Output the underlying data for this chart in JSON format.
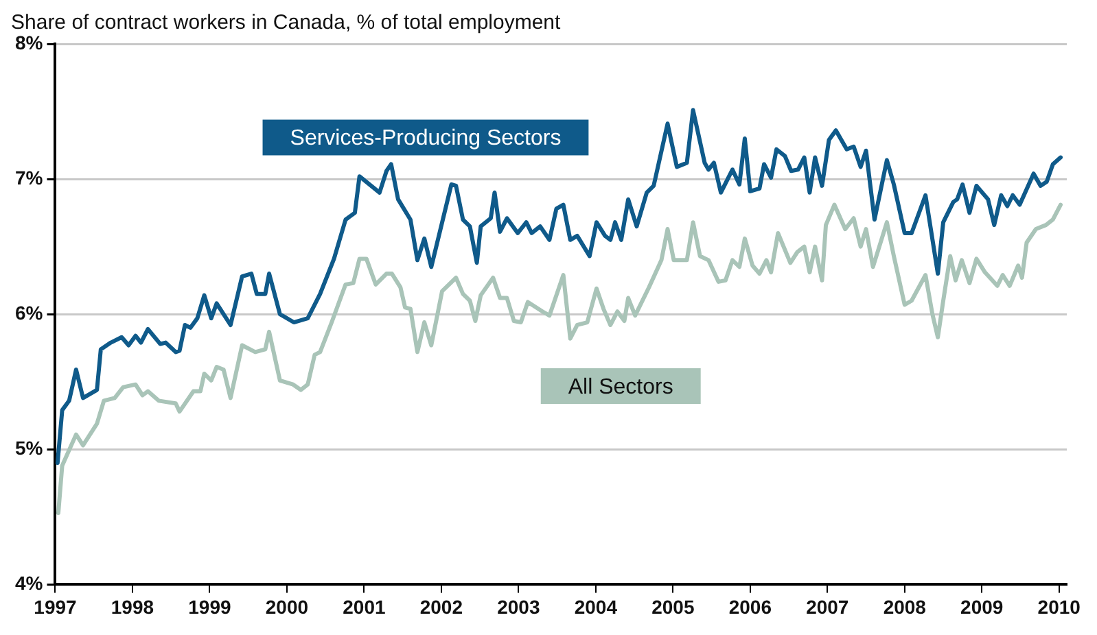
{
  "chart_data": {
    "type": "line",
    "title": "Share of contract workers in Canada, % of total employment",
    "xlim": [
      1997,
      2010.1
    ],
    "xticks": [
      1997,
      1998,
      1999,
      2000,
      2001,
      2002,
      2003,
      2004,
      2005,
      2006,
      2007,
      2008,
      2009,
      2010
    ],
    "ylim": [
      4,
      8
    ],
    "yticks": [
      {
        "value": 4,
        "label": "4%"
      },
      {
        "value": 5,
        "label": "5%"
      },
      {
        "value": 6,
        "label": "6%"
      },
      {
        "value": 7,
        "label": "7%"
      },
      {
        "value": 8,
        "label": "8%"
      }
    ],
    "grid": "y",
    "legend": false,
    "marker": "none",
    "line_style": "solid",
    "series": [
      {
        "name": "Services-Producing Sectors",
        "color": "#0f5a8a",
        "x": [
          1997.03,
          1997.09,
          1997.18,
          1997.27,
          1997.36,
          1997.54,
          1997.59,
          1997.72,
          1997.86,
          1997.95,
          1998.04,
          1998.11,
          1998.2,
          1998.36,
          1998.43,
          1998.56,
          1998.61,
          1998.68,
          1998.75,
          1998.84,
          1998.93,
          1999.02,
          1999.09,
          1999.27,
          1999.42,
          1999.54,
          1999.61,
          1999.72,
          1999.77,
          1999.91,
          2000.09,
          2000.27,
          2000.43,
          2000.61,
          2000.76,
          2000.88,
          2000.94,
          2001.2,
          2001.29,
          2001.35,
          2001.44,
          2001.6,
          2001.69,
          2001.78,
          2001.87,
          2002.13,
          2002.19,
          2002.28,
          2002.37,
          2002.46,
          2002.51,
          2002.64,
          2002.69,
          2002.76,
          2002.85,
          2002.99,
          2003.1,
          2003.17,
          2003.28,
          2003.4,
          2003.49,
          2003.58,
          2003.67,
          2003.76,
          2003.92,
          2004.01,
          2004.12,
          2004.19,
          2004.25,
          2004.33,
          2004.42,
          2004.53,
          2004.66,
          2004.75,
          2004.93,
          2005.05,
          2005.18,
          2005.26,
          2005.41,
          2005.46,
          2005.53,
          2005.62,
          2005.77,
          2005.86,
          2005.93,
          2006.0,
          2006.12,
          2006.18,
          2006.27,
          2006.34,
          2006.45,
          2006.53,
          2006.62,
          2006.7,
          2006.77,
          2006.84,
          2006.93,
          2007.02,
          2007.11,
          2007.25,
          2007.34,
          2007.43,
          2007.5,
          2007.61,
          2007.77,
          2007.86,
          2008.0,
          2008.09,
          2008.27,
          2008.43,
          2008.5,
          2008.63,
          2008.68,
          2008.75,
          2008.84,
          2008.93,
          2009.08,
          2009.16,
          2009.25,
          2009.33,
          2009.4,
          2009.49,
          2009.67,
          2009.76,
          2009.84,
          2009.92,
          2010.02
        ],
        "values": [
          4.9,
          5.29,
          5.36,
          5.59,
          5.38,
          5.44,
          5.74,
          5.79,
          5.83,
          5.77,
          5.84,
          5.79,
          5.89,
          5.78,
          5.79,
          5.72,
          5.73,
          5.92,
          5.9,
          5.97,
          6.14,
          5.97,
          6.08,
          5.92,
          6.28,
          6.3,
          6.15,
          6.15,
          6.3,
          6.0,
          5.94,
          5.97,
          6.15,
          6.41,
          6.7,
          6.75,
          7.02,
          6.9,
          7.06,
          7.11,
          6.85,
          6.7,
          6.4,
          6.56,
          6.35,
          6.96,
          6.95,
          6.7,
          6.65,
          6.38,
          6.65,
          6.71,
          6.9,
          6.61,
          6.71,
          6.6,
          6.68,
          6.6,
          6.65,
          6.55,
          6.78,
          6.81,
          6.55,
          6.58,
          6.43,
          6.68,
          6.58,
          6.55,
          6.68,
          6.55,
          6.85,
          6.65,
          6.9,
          6.95,
          7.41,
          7.09,
          7.12,
          7.51,
          7.12,
          7.07,
          7.12,
          6.9,
          7.07,
          6.96,
          7.3,
          6.91,
          6.93,
          7.11,
          7.01,
          7.22,
          7.17,
          7.06,
          7.07,
          7.16,
          6.9,
          7.16,
          6.95,
          7.29,
          7.36,
          7.22,
          7.24,
          7.09,
          7.21,
          6.7,
          7.14,
          6.96,
          6.6,
          6.6,
          6.88,
          6.3,
          6.68,
          6.83,
          6.85,
          6.96,
          6.75,
          6.95,
          6.85,
          6.66,
          6.88,
          6.8,
          6.88,
          6.81,
          7.04,
          6.95,
          6.98,
          7.11,
          7.16
        ]
      },
      {
        "name": "All Sectors",
        "color": "#a9c4b8",
        "x": [
          1997.04,
          1997.09,
          1997.27,
          1997.36,
          1997.54,
          1997.63,
          1997.77,
          1997.88,
          1998.04,
          1998.13,
          1998.2,
          1998.34,
          1998.56,
          1998.61,
          1998.79,
          1998.88,
          1998.93,
          1999.02,
          1999.09,
          1999.18,
          1999.27,
          1999.42,
          1999.59,
          1999.72,
          1999.77,
          1999.91,
          2000.08,
          2000.18,
          2000.27,
          2000.36,
          2000.43,
          2000.58,
          2000.76,
          2000.86,
          2000.94,
          2001.03,
          2001.15,
          2001.29,
          2001.36,
          2001.47,
          2001.53,
          2001.6,
          2001.69,
          2001.78,
          2001.87,
          2002.01,
          2002.19,
          2002.28,
          2002.37,
          2002.44,
          2002.51,
          2002.67,
          2002.76,
          2002.85,
          2002.94,
          2003.03,
          2003.12,
          2003.31,
          2003.4,
          2003.58,
          2003.67,
          2003.76,
          2003.89,
          2004.01,
          2004.1,
          2004.19,
          2004.28,
          2004.37,
          2004.42,
          2004.51,
          2004.69,
          2004.85,
          2004.93,
          2005.01,
          2005.18,
          2005.26,
          2005.35,
          2005.46,
          2005.59,
          2005.68,
          2005.77,
          2005.86,
          2005.93,
          2006.03,
          2006.12,
          2006.21,
          2006.27,
          2006.36,
          2006.52,
          2006.61,
          2006.7,
          2006.77,
          2006.84,
          2006.93,
          2006.98,
          2007.09,
          2007.23,
          2007.34,
          2007.43,
          2007.5,
          2007.59,
          2007.77,
          2007.86,
          2008.0,
          2008.09,
          2008.27,
          2008.36,
          2008.43,
          2008.5,
          2008.59,
          2008.66,
          2008.74,
          2008.84,
          2008.93,
          2009.04,
          2009.2,
          2009.27,
          2009.36,
          2009.47,
          2009.52,
          2009.58,
          2009.7,
          2009.83,
          2009.92,
          2010.02
        ],
        "values": [
          4.53,
          4.88,
          5.11,
          5.03,
          5.19,
          5.36,
          5.38,
          5.46,
          5.48,
          5.4,
          5.43,
          5.36,
          5.34,
          5.28,
          5.43,
          5.43,
          5.56,
          5.51,
          5.61,
          5.59,
          5.38,
          5.77,
          5.72,
          5.74,
          5.87,
          5.51,
          5.48,
          5.44,
          5.48,
          5.7,
          5.72,
          5.94,
          6.22,
          6.23,
          6.41,
          6.41,
          6.22,
          6.3,
          6.3,
          6.2,
          6.05,
          6.04,
          5.72,
          5.94,
          5.77,
          6.17,
          6.27,
          6.15,
          6.1,
          5.95,
          6.14,
          6.27,
          6.12,
          6.12,
          5.95,
          5.94,
          6.09,
          6.02,
          5.99,
          6.29,
          5.82,
          5.92,
          5.94,
          6.19,
          6.04,
          5.92,
          6.02,
          5.95,
          6.12,
          5.99,
          6.2,
          6.4,
          6.63,
          6.4,
          6.4,
          6.68,
          6.43,
          6.4,
          6.24,
          6.25,
          6.4,
          6.35,
          6.56,
          6.36,
          6.3,
          6.4,
          6.31,
          6.6,
          6.38,
          6.46,
          6.5,
          6.31,
          6.5,
          6.25,
          6.66,
          6.81,
          6.63,
          6.71,
          6.5,
          6.63,
          6.35,
          6.68,
          6.43,
          6.07,
          6.1,
          6.29,
          6.0,
          5.83,
          6.1,
          6.43,
          6.25,
          6.4,
          6.23,
          6.41,
          6.31,
          6.21,
          6.29,
          6.21,
          6.36,
          6.27,
          6.53,
          6.63,
          6.66,
          6.7,
          6.81
        ]
      }
    ]
  }
}
